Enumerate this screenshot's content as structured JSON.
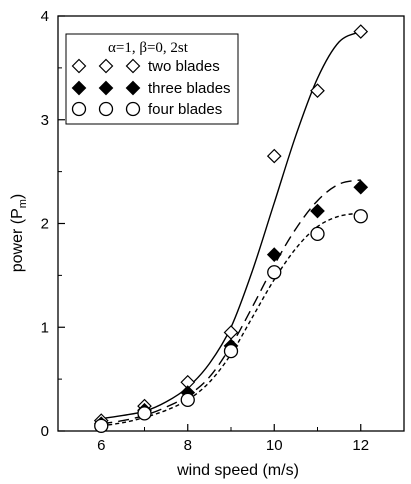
{
  "chart_data": {
    "type": "scatter",
    "title": "",
    "xlabel": "wind speed (m/s)",
    "ylabel_main": "power (P",
    "ylabel_sub": "m",
    "ylabel_close": ")",
    "xlim": [
      5,
      13
    ],
    "ylim": [
      0,
      4
    ],
    "x_ticks": [
      6,
      8,
      10,
      12
    ],
    "x_tick_labels": [
      "6",
      "8",
      "10",
      "12"
    ],
    "y_ticks": [
      0,
      1,
      2,
      3,
      4
    ],
    "y_tick_labels": [
      "0",
      "1",
      "2",
      "3",
      "4"
    ],
    "legend_title": "α=1, β=0, 2st",
    "legend_placement": "top-left",
    "grid": false,
    "series": [
      {
        "name": "two blades",
        "marker": "diamond-open",
        "line": "solid",
        "x": [
          6,
          7,
          8,
          9,
          10,
          11,
          12
        ],
        "y": [
          0.1,
          0.24,
          0.47,
          0.95,
          2.65,
          3.28,
          3.85
        ],
        "curve_x": [
          6,
          6.5,
          7,
          7.5,
          8,
          8.5,
          9,
          9.5,
          10,
          10.5,
          11,
          11.5,
          12
        ],
        "curve_y": [
          0.12,
          0.15,
          0.19,
          0.28,
          0.42,
          0.65,
          1.0,
          1.55,
          2.2,
          2.85,
          3.4,
          3.75,
          3.85
        ]
      },
      {
        "name": "three blades",
        "marker": "diamond-filled",
        "line": "long-dash",
        "x": [
          6,
          7,
          8,
          9,
          10,
          11,
          12
        ],
        "y": [
          0.07,
          0.2,
          0.37,
          0.82,
          1.7,
          2.12,
          2.35
        ],
        "curve_x": [
          6,
          6.5,
          7,
          7.5,
          8,
          8.5,
          9,
          9.5,
          10,
          10.5,
          11,
          11.5,
          12
        ],
        "curve_y": [
          0.07,
          0.1,
          0.15,
          0.23,
          0.34,
          0.52,
          0.82,
          1.2,
          1.6,
          1.95,
          2.22,
          2.38,
          2.42
        ]
      },
      {
        "name": "four blades",
        "marker": "circle-open",
        "line": "short-dash",
        "x": [
          6,
          7,
          8,
          9,
          10,
          11,
          12
        ],
        "y": [
          0.05,
          0.17,
          0.3,
          0.77,
          1.53,
          1.9,
          2.07
        ],
        "curve_x": [
          6,
          6.5,
          7,
          7.5,
          8,
          8.5,
          9,
          9.5,
          10,
          10.5,
          11,
          11.5,
          12
        ],
        "curve_y": [
          0.05,
          0.08,
          0.13,
          0.2,
          0.3,
          0.47,
          0.74,
          1.1,
          1.46,
          1.76,
          1.97,
          2.07,
          2.1
        ]
      }
    ]
  }
}
